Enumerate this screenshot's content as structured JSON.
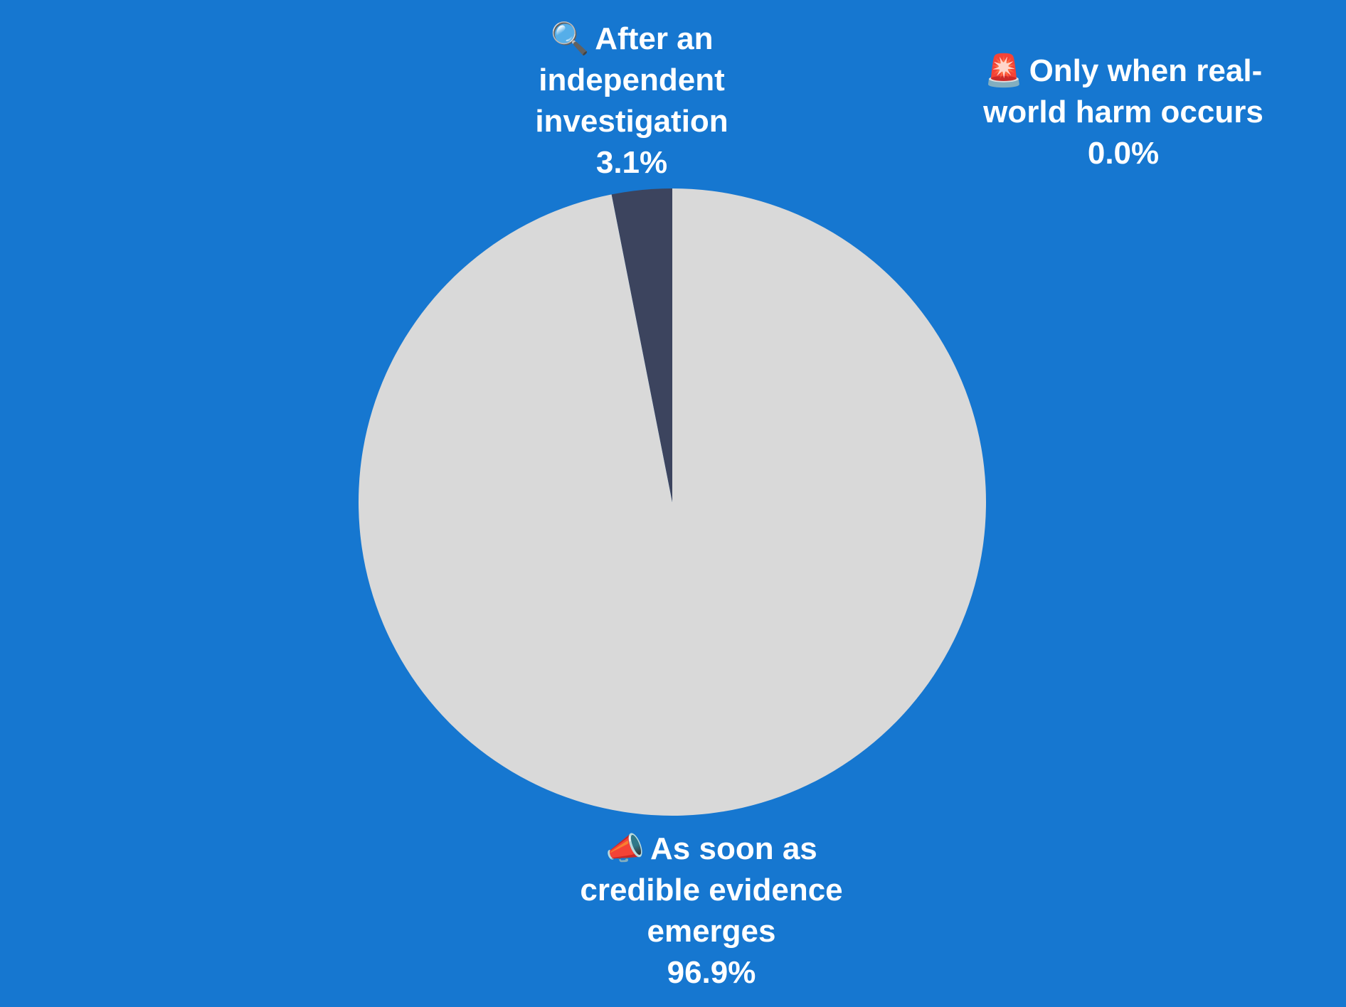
{
  "colors": {
    "background": "#1677d0",
    "label_text": "#ffffff",
    "slice_colors": [
      "#d9d9d9",
      "#3c445e",
      "#e4e4e4"
    ]
  },
  "chart_data": {
    "type": "pie",
    "start_angle": "12 o'clock",
    "direction": "clockwise",
    "slices": [
      {
        "label": "As soon as credible evidence emerges",
        "icon": "megaphone-icon",
        "icon_glyph": "📣",
        "value": 96.9,
        "value_label": "96.9%",
        "color": "#d9d9d9"
      },
      {
        "label": "After an independent investigation",
        "icon": "magnifying-glass-icon",
        "icon_glyph": "🔍",
        "value": 3.1,
        "value_label": "3.1%",
        "color": "#3c445e"
      },
      {
        "label": "Only when real-world harm occurs",
        "icon": "siren-icon",
        "icon_glyph": "🚨",
        "value": 0.0,
        "value_label": "0.0%",
        "color": "#e4e4e4"
      }
    ]
  }
}
